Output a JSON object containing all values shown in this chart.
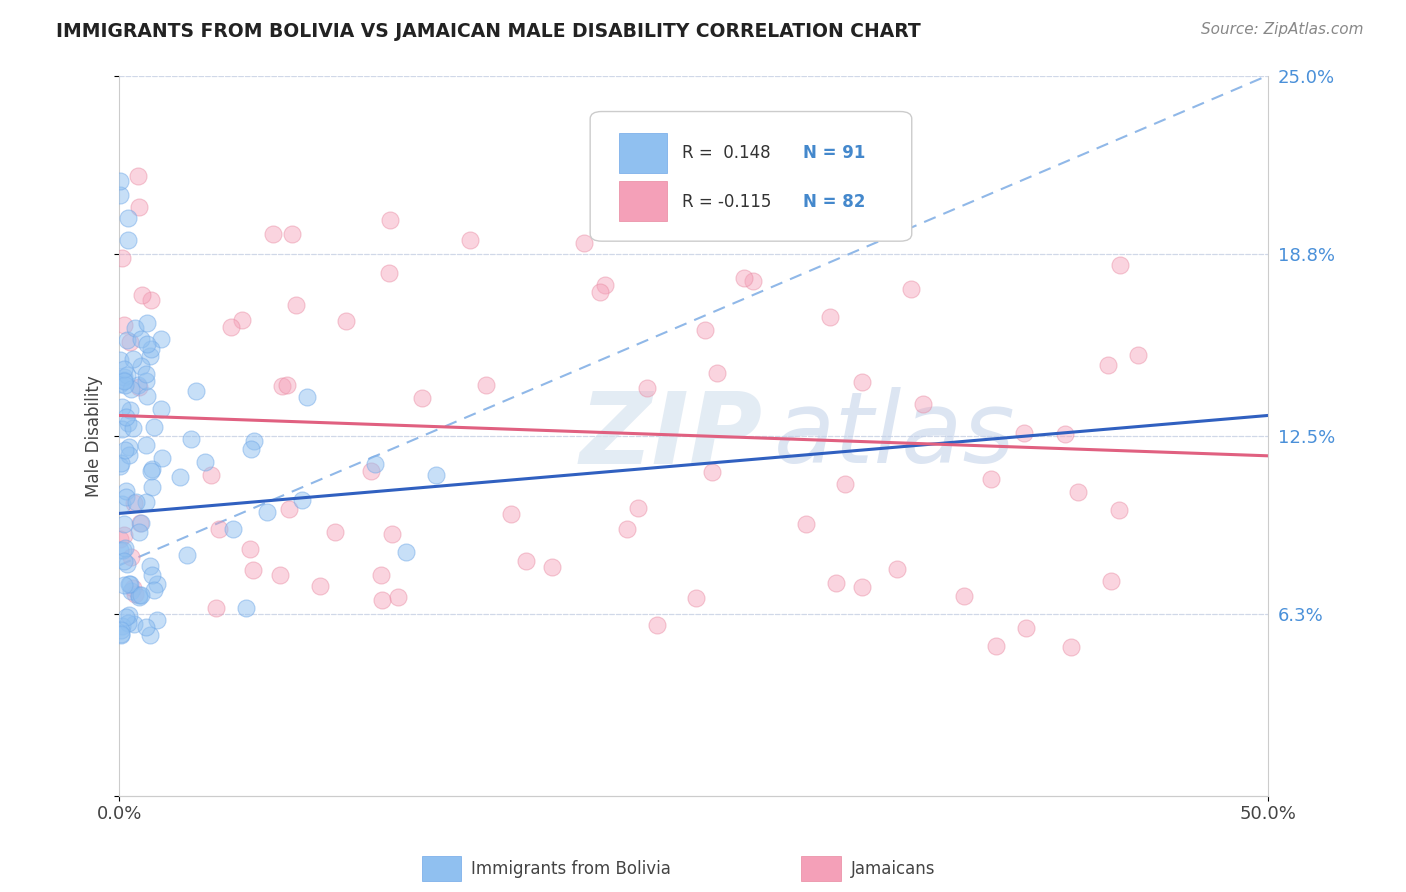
{
  "title": "IMMIGRANTS FROM BOLIVIA VS JAMAICAN MALE DISABILITY CORRELATION CHART",
  "source": "Source: ZipAtlas.com",
  "ylabel": "Male Disability",
  "x_min": 0.0,
  "x_max": 50.0,
  "y_min": 0.0,
  "y_max": 25.0,
  "blue_color": "#90c0f0",
  "blue_edge_color": "#70a8e8",
  "pink_color": "#f4a0b8",
  "pink_edge_color": "#e888a0",
  "blue_trend_color": "#3060c0",
  "pink_trend_color": "#e06080",
  "dash_color": "#90b8e8",
  "background_color": "#ffffff",
  "grid_color": "#d0d8e8",
  "R_blue": 0.148,
  "N_blue": 91,
  "R_pink": -0.115,
  "N_pink": 82,
  "blue_trend_x0": 0.0,
  "blue_trend_y0": 9.8,
  "blue_trend_x1": 50.0,
  "blue_trend_y1": 13.2,
  "pink_trend_x0": 0.0,
  "pink_trend_y0": 13.2,
  "pink_trend_x1": 50.0,
  "pink_trend_y1": 11.8,
  "dash_x0": 0.0,
  "dash_y0": 8.0,
  "dash_x1": 50.0,
  "dash_y1": 25.0,
  "legend_r_blue_text": "R =  0.148",
  "legend_n_blue_text": "N = 91",
  "legend_r_pink_text": "R = -0.115",
  "legend_n_pink_text": "N = 82",
  "bottom_legend_blue": "Immigrants from Bolivia",
  "bottom_legend_pink": "Jamaicans",
  "y_tick_vals": [
    0.0,
    6.3,
    12.5,
    18.8,
    25.0
  ],
  "y_tick_labels": [
    "",
    "6.3%",
    "12.5%",
    "18.8%",
    "25.0%"
  ],
  "right_tick_color": "#4a90d9",
  "title_color": "#222222",
  "source_color": "#888888",
  "watermark_zip": "ZIP",
  "watermark_atlas": "atlas"
}
